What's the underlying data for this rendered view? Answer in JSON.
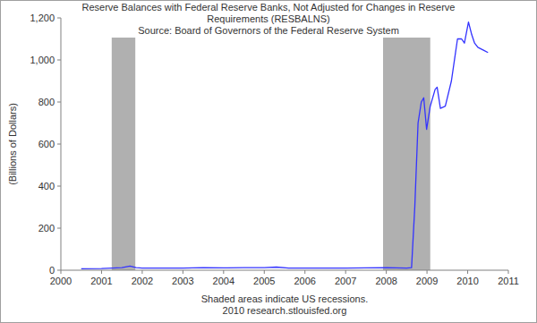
{
  "chart_data": {
    "type": "line",
    "title": [
      "Reserve Balances with Federal Reserve Banks, Not Adjusted for Changes in Reserve",
      "Requirements (RESBALNS)",
      "Source: Board of Governors of the Federal Reserve System"
    ],
    "ylabel": "(Billions of Dollars)",
    "notes": [
      "Shaded areas indicate US recessions.",
      "2010 research.stlouisfed.org"
    ],
    "x": [
      2000.5,
      2001.0,
      2001.5,
      2001.7,
      2001.85,
      2002.0,
      2003.0,
      2003.5,
      2004.0,
      2004.5,
      2005.0,
      2005.3,
      2005.6,
      2006.0,
      2007.0,
      2008.0,
      2008.5,
      2008.62,
      2008.7,
      2008.78,
      2008.86,
      2008.92,
      2008.99,
      2009.08,
      2009.2,
      2009.25,
      2009.33,
      2009.45,
      2009.6,
      2009.75,
      2009.85,
      2009.92,
      2010.02,
      2010.1,
      2010.17,
      2010.25,
      2010.4,
      2010.5
    ],
    "values": [
      7,
      8,
      12,
      20,
      12,
      10,
      10,
      12,
      11,
      12,
      12,
      15,
      10,
      10,
      10,
      12,
      10,
      12,
      300,
      700,
      800,
      820,
      670,
      780,
      860,
      870,
      770,
      780,
      900,
      1100,
      1100,
      1080,
      1180,
      1120,
      1080,
      1060,
      1045,
      1035
    ],
    "color": "#3333ff",
    "recessions": [
      [
        2001.25,
        2001.83
      ],
      [
        2007.92,
        2009.08
      ]
    ],
    "xlim": [
      2000,
      2011
    ],
    "xticks": [
      2000,
      2001,
      2002,
      2003,
      2004,
      2005,
      2006,
      2007,
      2008,
      2009,
      2010,
      2011
    ],
    "ylim": [
      0,
      1200
    ],
    "yticks": [
      0,
      200,
      400,
      600,
      800,
      {
        "value": 1000,
        "label": "1,000"
      },
      {
        "value": 1200,
        "label": "1,200"
      }
    ],
    "grid": false
  }
}
